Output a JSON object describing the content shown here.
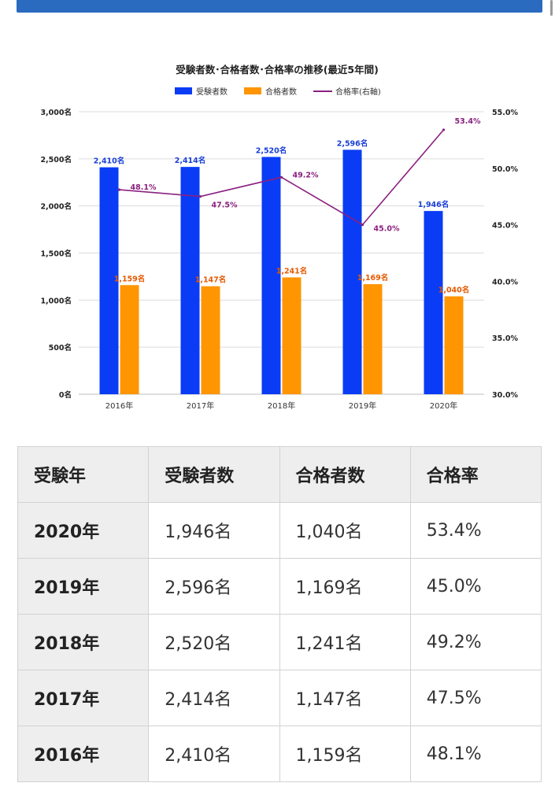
{
  "chart_data": {
    "type": "bar",
    "title": "受験者数･合格者数･合格率の推移(最近5年間)",
    "categories": [
      "2016年",
      "2017年",
      "2018年",
      "2019年",
      "2020年"
    ],
    "series": [
      {
        "name": "受験者数",
        "type": "bar",
        "axis": "left",
        "color": "#0a3cf5",
        "values": [
          2410,
          2414,
          2520,
          2596,
          1946
        ],
        "labels": [
          "2,410名",
          "2,414名",
          "2,520名",
          "2,596名",
          "1,946名"
        ]
      },
      {
        "name": "合格者数",
        "type": "bar",
        "axis": "left",
        "color": "#ff9500",
        "values": [
          1159,
          1147,
          1241,
          1169,
          1040
        ],
        "labels": [
          "1,159名",
          "1,147名",
          "1,241名",
          "1,169名",
          "1,040名"
        ]
      },
      {
        "name": "合格率(右軸)",
        "type": "line",
        "axis": "right",
        "color": "#8a2080",
        "values": [
          48.1,
          47.5,
          49.2,
          45.0,
          53.4
        ],
        "labels": [
          "48.1%",
          "47.5%",
          "49.2%",
          "45.0%",
          "53.4%"
        ]
      }
    ],
    "y_left": {
      "min": 0,
      "max": 3000,
      "ticks": [
        "0名",
        "500名",
        "1,000名",
        "1,500名",
        "2,000名",
        "2,500名",
        "3,000名"
      ]
    },
    "y_right": {
      "min": 30.0,
      "max": 55.0,
      "ticks": [
        "30.0%",
        "35.0%",
        "40.0%",
        "45.0%",
        "50.0%",
        "55.0%"
      ]
    },
    "grid": true,
    "legend_position": "top-center"
  },
  "table": {
    "headers": [
      "受験年",
      "受験者数",
      "合格者数",
      "合格率"
    ],
    "rows": [
      [
        "2020年",
        "1,946名",
        "1,040名",
        "53.4%"
      ],
      [
        "2019年",
        "2,596名",
        "1,169名",
        "45.0%"
      ],
      [
        "2018年",
        "2,520名",
        "1,241名",
        "49.2%"
      ],
      [
        "2017年",
        "2,414名",
        "1,147名",
        "47.5%"
      ],
      [
        "2016年",
        "2,410名",
        "1,159名",
        "48.1%"
      ]
    ]
  }
}
